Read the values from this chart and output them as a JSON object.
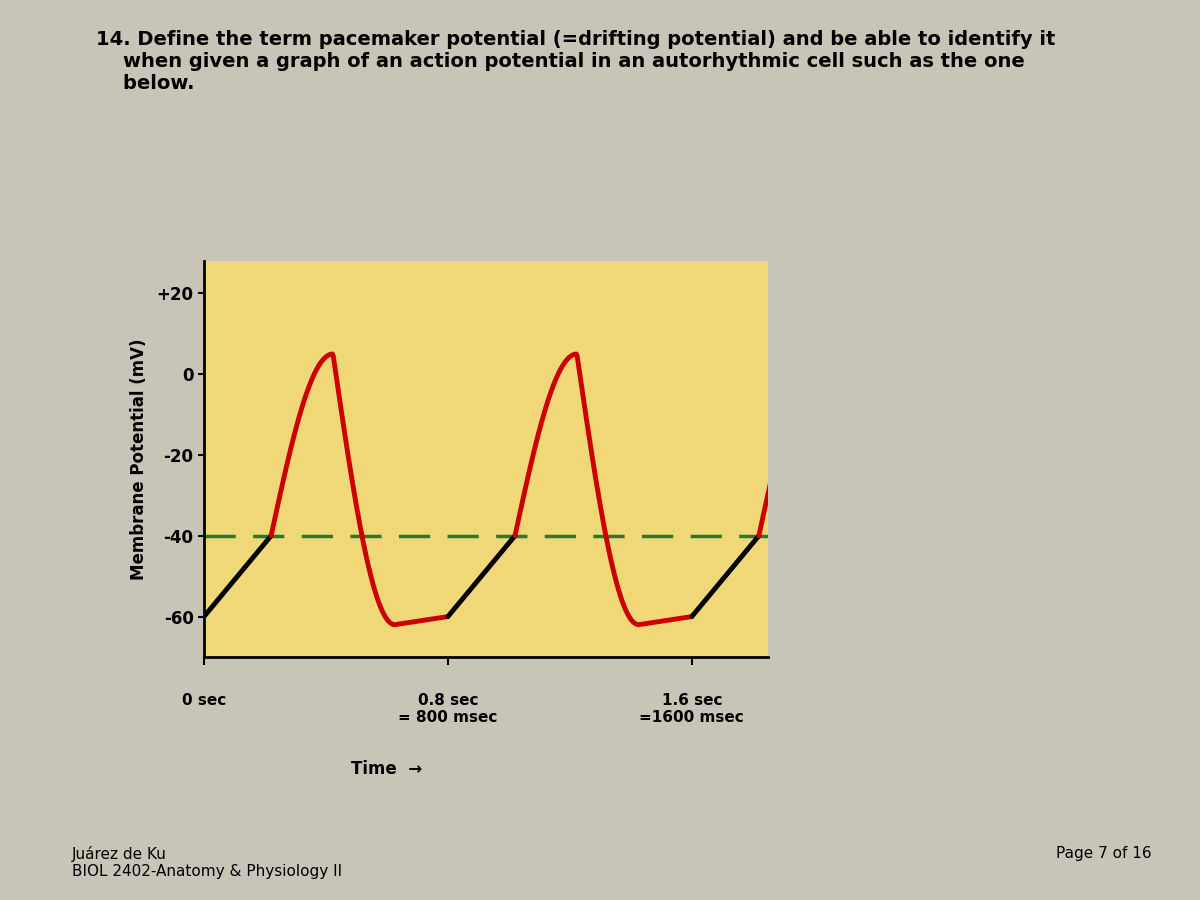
{
  "background_color": "#f0d878",
  "page_background": "#c8c4b8",
  "ylabel": "Membrane Potential (mV)",
  "yticks": [
    20,
    0,
    -20,
    -40,
    -60
  ],
  "ytick_labels": [
    "+20",
    "0",
    "-20",
    "-40",
    "-60"
  ],
  "xtick_positions": [
    0.0,
    0.8,
    1.6
  ],
  "threshold_y": -40,
  "threshold_color": "#2a7a2a",
  "black_line_color": "#000000",
  "red_line_color": "#cc0000",
  "black_line_lw": 3.5,
  "red_line_lw": 3.5,
  "ylim": [
    -70,
    28
  ],
  "xlim": [
    0.0,
    1.85
  ],
  "footer_left": "Juárez de Ku\nBIOL 2402-Anatomy & Physiology II",
  "footer_right": "Page 7 of 16",
  "title_line1": "14. Define the term ",
  "title_italic1": "pacemaker potential (=drifting potential)",
  "title_rest1": " and be able to identify it",
  "title_line2": "when given a graph of an action potential in an autorhythmic cell such as the one",
  "title_line3": "below."
}
